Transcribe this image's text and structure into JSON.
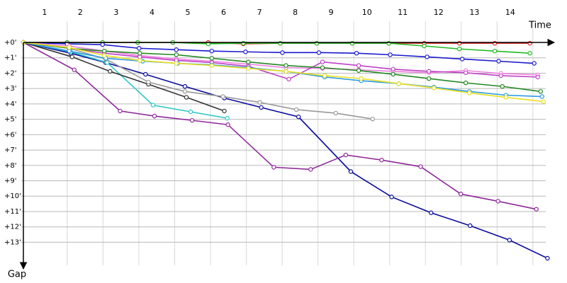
{
  "chart_data": {
    "type": "line",
    "x_label": "Time",
    "y_label": "Gap",
    "xlim": [
      0.41,
      15.15
    ],
    "xticks": [
      1,
      2,
      3,
      4,
      5,
      6,
      7,
      8,
      9,
      10,
      11,
      12,
      13,
      14
    ],
    "ylim": [
      0,
      14.5
    ],
    "yticks": [
      {
        "value": 0,
        "label": "+0'"
      },
      {
        "value": 1,
        "label": "+1'"
      },
      {
        "value": 2,
        "label": "+2'"
      },
      {
        "value": 3,
        "label": "+3'"
      },
      {
        "value": 4,
        "label": "+4'"
      },
      {
        "value": 5,
        "label": "+5'"
      },
      {
        "value": 6,
        "label": "+6'"
      },
      {
        "value": 7,
        "label": "+7'"
      },
      {
        "value": 8,
        "label": "+8'"
      },
      {
        "value": 9,
        "label": "+9'"
      },
      {
        "value": 10,
        "label": "+10'"
      },
      {
        "value": 11,
        "label": "+11'"
      },
      {
        "value": 12,
        "label": "+12'"
      },
      {
        "value": 13,
        "label": "+13'"
      }
    ],
    "grid": true,
    "y_inverted": true,
    "series": [
      {
        "color": "#e02020",
        "x": [
          0.41,
          1.63,
          2.62,
          3.6,
          4.58,
          5.57,
          6.55,
          7.58,
          8.6,
          9.59,
          10.61,
          11.6,
          12.58,
          13.57,
          14.55
        ],
        "values": [
          0,
          0,
          0,
          0,
          0,
          0,
          0.09,
          0.05,
          0.05,
          0.05,
          0.05,
          0.05,
          0.05,
          0.05,
          0.05
        ]
      },
      {
        "color": "#22bb22",
        "x": [
          0.41,
          1.63,
          2.62,
          3.6,
          4.58,
          5.57,
          6.55,
          7.58,
          8.6,
          9.59,
          10.61,
          11.6,
          12.58,
          13.57,
          14.55
        ],
        "values": [
          0,
          0,
          0,
          0,
          0,
          0.09,
          0.05,
          0.05,
          0.05,
          0.05,
          0.05,
          0.23,
          0.42,
          0.56,
          0.7
        ]
      },
      {
        "color": "#1a1ad0",
        "x": [
          0.41,
          1.63,
          2.62,
          3.64,
          4.68,
          5.67,
          6.61,
          7.64,
          8.66,
          9.71,
          10.65,
          11.68,
          12.66,
          13.68,
          14.67
        ],
        "values": [
          0,
          0.09,
          0.14,
          0.38,
          0.47,
          0.56,
          0.61,
          0.66,
          0.66,
          0.7,
          0.8,
          0.94,
          1.08,
          1.22,
          1.36
        ]
      },
      {
        "color": "#0a0a9a",
        "x": [
          0.41,
          1.73,
          2.71,
          3.82,
          4.92,
          6.02,
          7.05,
          8.09,
          9.55,
          10.69,
          11.79,
          12.88,
          13.98,
          15.04
        ],
        "values": [
          0,
          0.7,
          1.31,
          2.07,
          2.86,
          3.62,
          4.23,
          4.84,
          8.4,
          10.05,
          11.08,
          11.92,
          12.86,
          14.04
        ]
      },
      {
        "color": "#8e2a9a",
        "x": [
          0.41,
          1.83,
          3.11,
          4.07,
          5.12,
          6.12,
          7.4,
          8.43,
          9.41,
          10.41,
          11.5,
          12.62,
          13.66,
          14.73
        ],
        "values": [
          0,
          1.78,
          4.46,
          4.79,
          5.07,
          5.35,
          8.12,
          8.26,
          7.32,
          7.65,
          8.08,
          9.86,
          10.33,
          10.85
        ]
      },
      {
        "color": "#30c8c8",
        "x": [
          0.41,
          1.73,
          2.75,
          4.03,
          5.08,
          6.1
        ],
        "values": [
          0,
          0.61,
          1.31,
          4.08,
          4.51,
          4.93
        ]
      },
      {
        "color": "#333333",
        "x": [
          0.41,
          1.77,
          2.83,
          3.9,
          4.96,
          6.02
        ],
        "values": [
          0,
          0.94,
          1.88,
          2.72,
          3.57,
          4.46
        ]
      },
      {
        "color": "#999999",
        "x": [
          0.41,
          1.69,
          2.71,
          3.9,
          4.92,
          5.98,
          7.01,
          8.03,
          9.13,
          10.16
        ],
        "values": [
          0,
          0.38,
          1.08,
          2.58,
          3.19,
          3.52,
          3.9,
          4.37,
          4.6,
          4.98
        ]
      },
      {
        "color": "#f080e0",
        "x": [
          0.41,
          1.69,
          2.67,
          3.66,
          4.68,
          5.67,
          6.69,
          7.74,
          8.76,
          9.77,
          10.73,
          11.73,
          12.76,
          13.74,
          14.77
        ],
        "values": [
          0,
          0.23,
          0.56,
          0.85,
          1.08,
          1.22,
          1.41,
          1.64,
          1.69,
          1.78,
          1.88,
          1.97,
          1.83,
          2.02,
          2.11
        ]
      },
      {
        "color": "#c040c8",
        "x": [
          0.41,
          1.69,
          2.67,
          3.66,
          4.68,
          5.67,
          6.69,
          7.82,
          8.76,
          9.77,
          10.73,
          11.73,
          12.76,
          13.74,
          14.77
        ],
        "values": [
          0,
          0.38,
          0.7,
          0.94,
          1.17,
          1.31,
          1.55,
          2.39,
          1.27,
          1.5,
          1.74,
          1.88,
          1.97,
          2.16,
          2.25
        ]
      },
      {
        "color": "#228822",
        "x": [
          0.41,
          1.69,
          2.67,
          3.66,
          4.68,
          5.67,
          6.69,
          7.74,
          8.76,
          9.77,
          10.73,
          11.73,
          12.76,
          13.78,
          14.85
        ],
        "values": [
          0,
          0.38,
          0.56,
          0.7,
          0.8,
          1.03,
          1.27,
          1.5,
          1.64,
          1.83,
          2.07,
          2.35,
          2.63,
          2.86,
          3.19
        ]
      },
      {
        "color": "#2a9ae0",
        "x": [
          0.41,
          1.69,
          2.71,
          3.74,
          4.72,
          5.67,
          6.69,
          7.74,
          8.82,
          9.84,
          10.89,
          11.87,
          12.86,
          13.88,
          14.89
        ],
        "values": [
          0,
          0.56,
          1.03,
          1.22,
          1.36,
          1.46,
          1.64,
          1.88,
          2.25,
          2.49,
          2.68,
          2.91,
          3.19,
          3.43,
          3.52
        ]
      },
      {
        "color": "#e8e020",
        "x": [
          0.41,
          1.69,
          2.67,
          3.66,
          4.68,
          5.67,
          6.69,
          7.74,
          8.82,
          9.84,
          10.89,
          11.87,
          12.86,
          13.88,
          14.93
        ],
        "values": [
          0,
          0.33,
          0.85,
          1.17,
          1.36,
          1.5,
          1.69,
          1.88,
          2.16,
          2.35,
          2.68,
          2.96,
          3.29,
          3.57,
          3.85
        ]
      }
    ]
  }
}
